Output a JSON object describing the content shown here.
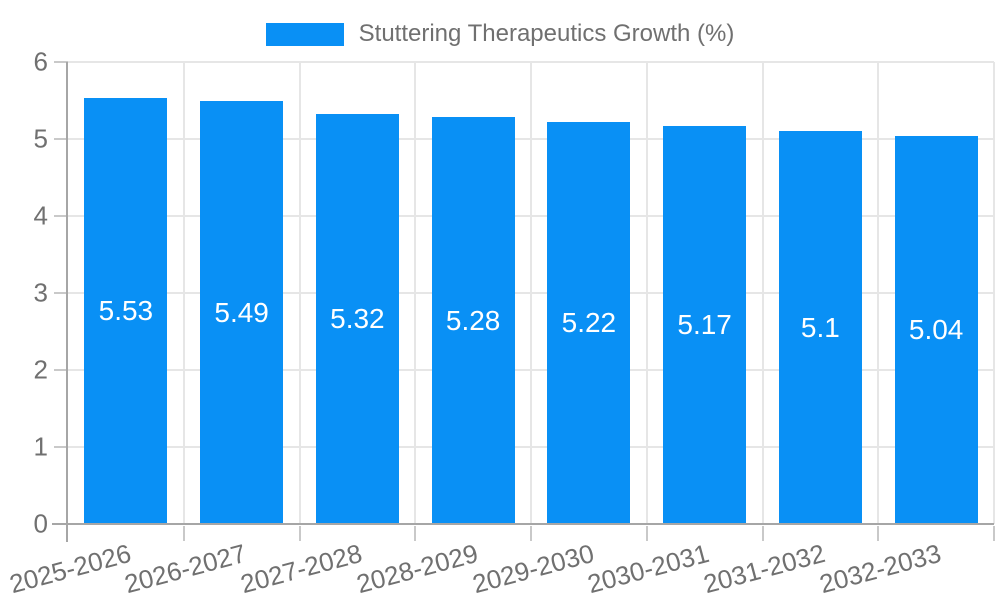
{
  "chart_data": {
    "type": "bar",
    "title": "",
    "legend": "Stuttering Therapeutics Growth (%)",
    "legend_position": "top-center",
    "categories": [
      "2025-2026",
      "2026-2027",
      "2027-2028",
      "2028-2029",
      "2029-2030",
      "2030-2031",
      "2031-2032",
      "2032-2033"
    ],
    "values": [
      5.53,
      5.49,
      5.32,
      5.28,
      5.22,
      5.17,
      5.1,
      5.04
    ],
    "value_labels": [
      "5.53",
      "5.49",
      "5.32",
      "5.28",
      "5.22",
      "5.17",
      "5.1",
      "5.04"
    ],
    "xlabel": "",
    "ylabel": "",
    "ylim": [
      0,
      6
    ],
    "yticks": [
      0,
      1,
      2,
      3,
      4,
      5,
      6
    ],
    "grid": true,
    "bar_label_position": "center",
    "x_tick_rotation_deg": -15
  },
  "colors": {
    "bar": "#0990f5",
    "grid": "#e6e6e6",
    "axis": "#a6a6a6",
    "tick": "#c9c9c9",
    "tick_text": "#707070",
    "legend_text": "#707070",
    "value_text": "#ffffff",
    "background": "#ffffff"
  }
}
